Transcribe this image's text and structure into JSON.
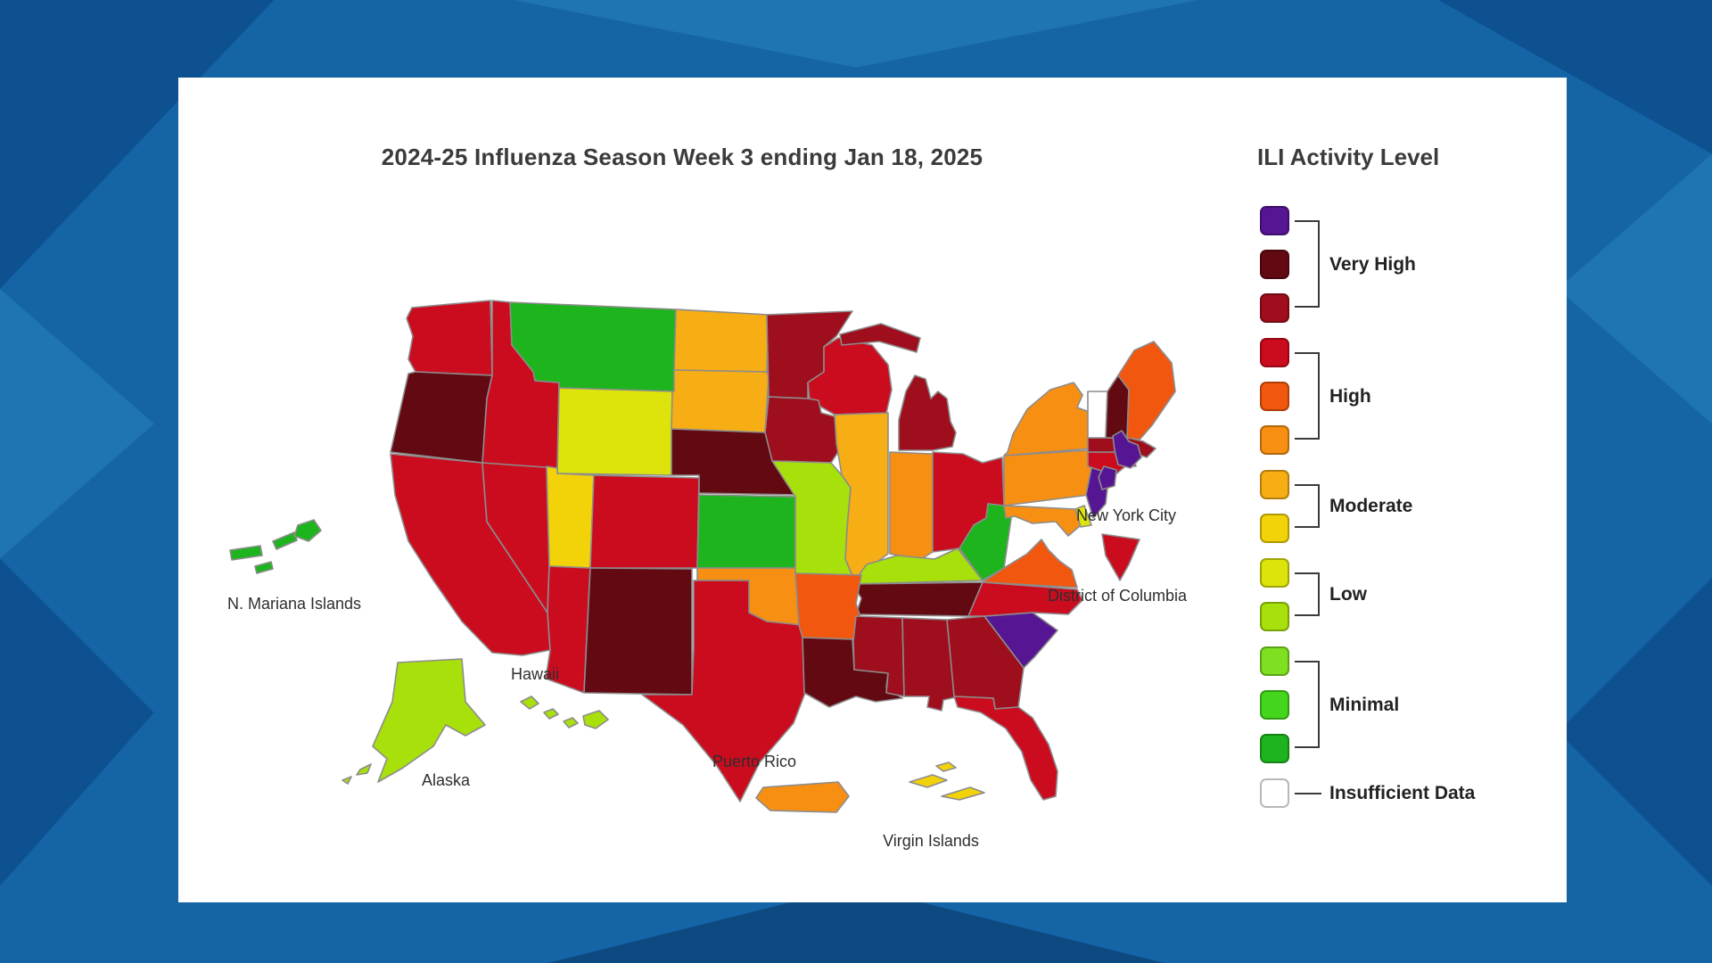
{
  "title": "2024-25 Influenza Season Week 3 ending Jan 18, 2025",
  "legend": {
    "title": "ILI Activity Level",
    "groups": [
      {
        "label": "Very High",
        "levels": [
          "level-13",
          "level-12",
          "level-11"
        ]
      },
      {
        "label": "High",
        "levels": [
          "level-10",
          "level-9",
          "level-8"
        ]
      },
      {
        "label": "Moderate",
        "levels": [
          "level-7",
          "level-6"
        ]
      },
      {
        "label": "Low",
        "levels": [
          "level-5",
          "level-4"
        ]
      },
      {
        "label": "Minimal",
        "levels": [
          "level-3",
          "level-2",
          "level-1"
        ]
      },
      {
        "label": "Insufficient Data",
        "levels": [
          "insufficient"
        ]
      }
    ],
    "colors": {
      "level-13": "#561593",
      "level-12": "#630912",
      "level-11": "#9e0e1c",
      "level-10": "#cb0c1f",
      "level-9": "#f2570f",
      "level-8": "#f78f12",
      "level-7": "#f7ad14",
      "level-6": "#f2d30a",
      "level-5": "#dce40b",
      "level-4": "#a8e00c",
      "level-3": "#7fe022",
      "level-2": "#44d61c",
      "level-1": "#1eb41e",
      "insufficient": "#ffffff"
    }
  },
  "map": {
    "labels": [
      {
        "text": "N. Mariana Islands"
      },
      {
        "text": "Alaska"
      },
      {
        "text": "Hawaii"
      },
      {
        "text": "Puerto Rico"
      },
      {
        "text": "Virgin Islands"
      },
      {
        "text": "New York City"
      },
      {
        "text": "District of Columbia"
      }
    ],
    "regions": [
      {
        "id": "WA",
        "name": "Washington",
        "level": "level-10"
      },
      {
        "id": "OR",
        "name": "Oregon",
        "level": "level-12"
      },
      {
        "id": "CA",
        "name": "California",
        "level": "level-10"
      },
      {
        "id": "NV",
        "name": "Nevada",
        "level": "level-10"
      },
      {
        "id": "ID",
        "name": "Idaho",
        "level": "level-10"
      },
      {
        "id": "MT",
        "name": "Montana",
        "level": "level-1"
      },
      {
        "id": "WY",
        "name": "Wyoming",
        "level": "level-5"
      },
      {
        "id": "UT",
        "name": "Utah",
        "level": "level-6"
      },
      {
        "id": "AZ",
        "name": "Arizona",
        "level": "level-10"
      },
      {
        "id": "NM",
        "name": "New Mexico",
        "level": "level-12"
      },
      {
        "id": "CO",
        "name": "Colorado",
        "level": "level-10"
      },
      {
        "id": "ND",
        "name": "North Dakota",
        "level": "level-7"
      },
      {
        "id": "SD",
        "name": "South Dakota",
        "level": "level-7"
      },
      {
        "id": "NE",
        "name": "Nebraska",
        "level": "level-12"
      },
      {
        "id": "KS",
        "name": "Kansas",
        "level": "level-1"
      },
      {
        "id": "OK",
        "name": "Oklahoma",
        "level": "level-8"
      },
      {
        "id": "TX",
        "name": "Texas",
        "level": "level-10"
      },
      {
        "id": "MN",
        "name": "Minnesota",
        "level": "level-11"
      },
      {
        "id": "IA",
        "name": "Iowa",
        "level": "level-11"
      },
      {
        "id": "MO",
        "name": "Missouri",
        "level": "level-4"
      },
      {
        "id": "AR",
        "name": "Arkansas",
        "level": "level-9"
      },
      {
        "id": "LA",
        "name": "Louisiana",
        "level": "level-12"
      },
      {
        "id": "WI",
        "name": "Wisconsin",
        "level": "level-10"
      },
      {
        "id": "IL",
        "name": "Illinois",
        "level": "level-7"
      },
      {
        "id": "MS",
        "name": "Mississippi",
        "level": "level-11"
      },
      {
        "id": "MI",
        "name": "Michigan",
        "level": "level-11"
      },
      {
        "id": "IN",
        "name": "Indiana",
        "level": "level-8"
      },
      {
        "id": "OH",
        "name": "Ohio",
        "level": "level-10"
      },
      {
        "id": "KY",
        "name": "Kentucky",
        "level": "level-4"
      },
      {
        "id": "TN",
        "name": "Tennessee",
        "level": "level-12"
      },
      {
        "id": "AL",
        "name": "Alabama",
        "level": "level-11"
      },
      {
        "id": "GA",
        "name": "Georgia",
        "level": "level-11"
      },
      {
        "id": "FL",
        "name": "Florida",
        "level": "level-10"
      },
      {
        "id": "SC",
        "name": "South Carolina",
        "level": "level-13"
      },
      {
        "id": "NC",
        "name": "North Carolina",
        "level": "level-10"
      },
      {
        "id": "VA",
        "name": "Virginia",
        "level": "level-9"
      },
      {
        "id": "WV",
        "name": "West Virginia",
        "level": "level-1"
      },
      {
        "id": "MD",
        "name": "Maryland",
        "level": "level-8"
      },
      {
        "id": "DE",
        "name": "Delaware",
        "level": "level-5"
      },
      {
        "id": "PA",
        "name": "Pennsylvania",
        "level": "level-8"
      },
      {
        "id": "NJ",
        "name": "New Jersey",
        "level": "level-13"
      },
      {
        "id": "NY",
        "name": "New York",
        "level": "level-8"
      },
      {
        "id": "CT",
        "name": "Connecticut",
        "level": "level-10"
      },
      {
        "id": "RI",
        "name": "Rhode Island",
        "level": "level-10"
      },
      {
        "id": "MA",
        "name": "Massachusetts",
        "level": "level-11"
      },
      {
        "id": "VT",
        "name": "Vermont",
        "level": "insufficient"
      },
      {
        "id": "NH",
        "name": "New Hampshire",
        "level": "level-12"
      },
      {
        "id": "ME",
        "name": "Maine",
        "level": "level-9"
      },
      {
        "id": "NYC",
        "name": "New York City",
        "level": "level-13"
      },
      {
        "id": "DC",
        "name": "District of Columbia",
        "level": "level-10"
      },
      {
        "id": "PR",
        "name": "Puerto Rico",
        "level": "level-8"
      },
      {
        "id": "VI",
        "name": "Virgin Islands",
        "level": "level-6"
      },
      {
        "id": "AK",
        "name": "Alaska",
        "level": "level-4"
      },
      {
        "id": "HI",
        "name": "Hawaii",
        "level": "level-4"
      },
      {
        "id": "MP",
        "name": "N. Mariana Islands",
        "level": "level-1"
      }
    ]
  }
}
